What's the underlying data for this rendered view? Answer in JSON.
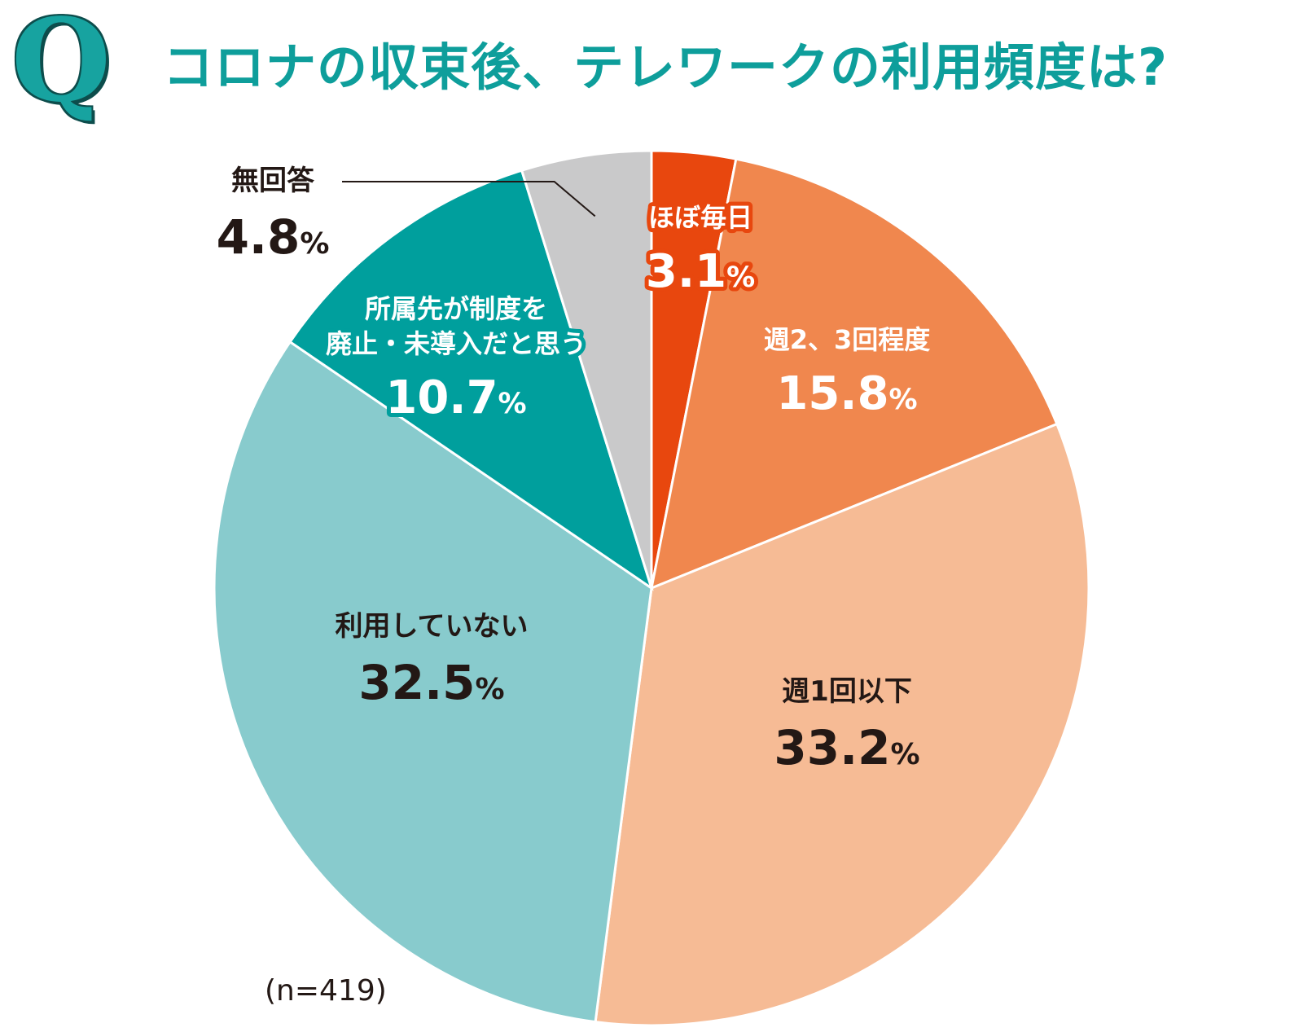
{
  "header": {
    "q_mark": "Q",
    "title": "コロナの収束後、テレワークの利用頻度は?"
  },
  "footer": {
    "sample_size": "(n=419)"
  },
  "chart_data": {
    "type": "pie",
    "title": "コロナの収束後、テレワークの利用頻度は?",
    "start_angle_deg": 0,
    "direction": "clockwise",
    "slices": [
      {
        "label": [
          "ほぼ毎日"
        ],
        "value": 3.1,
        "value_text": "3.1",
        "unit": "%",
        "color": "#e8470e",
        "text_color": "#ffffff",
        "outline": "#e8470e"
      },
      {
        "label": [
          "週2、3回程度"
        ],
        "value": 15.8,
        "value_text": "15.8",
        "unit": "%",
        "color": "#f0874e",
        "text_color": "#ffffff",
        "outline": ""
      },
      {
        "label": [
          "週1回以下"
        ],
        "value": 33.2,
        "value_text": "33.2",
        "unit": "%",
        "color": "#f6bb95",
        "text_color": "#231815",
        "outline": ""
      },
      {
        "label": [
          "利用していない"
        ],
        "value": 32.5,
        "value_text": "32.5",
        "unit": "%",
        "color": "#88cbcd",
        "text_color": "#231815",
        "outline": ""
      },
      {
        "label": [
          "所属先が制度を",
          "廃止・未導入だと思う"
        ],
        "value": 10.7,
        "value_text": "10.7",
        "unit": "%",
        "color": "#009f9d",
        "text_color": "#ffffff",
        "outline": "#009f9d"
      },
      {
        "label": [
          "無回答"
        ],
        "value": 4.8,
        "value_text": "4.8",
        "unit": "%",
        "color": "#c9c9ca",
        "text_color": "#231815",
        "outline": "",
        "external": true
      }
    ]
  }
}
